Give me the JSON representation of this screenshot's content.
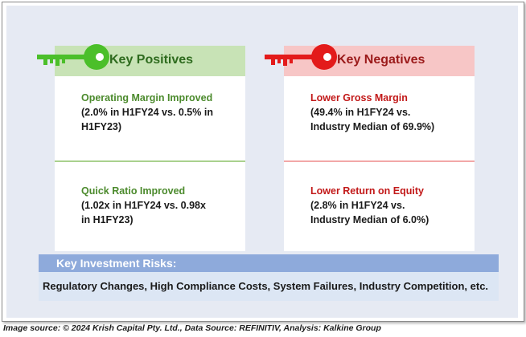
{
  "positives": {
    "header": "Key Positives",
    "color": "#4bbf2a",
    "items": [
      {
        "title": "Operating Margin Improved",
        "line1": "(2.0% in H1FY24 vs. 0.5% in",
        "line2": "H1FY23)"
      },
      {
        "title": "Quick Ratio Improved",
        "line1": "(1.02x in H1FY24 vs. 0.98x",
        "line2": "in H1FY23)"
      }
    ]
  },
  "negatives": {
    "header": "Key Negatives",
    "color": "#e31b1b",
    "items": [
      {
        "title": "Lower Gross Margin",
        "line1": "(49.4% in H1FY24 vs.",
        "line2": "Industry Median of 69.9%)"
      },
      {
        "title": "Lower Return on Equity",
        "line1": "(2.8% in H1FY24 vs.",
        "line2": "Industry Median of 6.0%)"
      }
    ]
  },
  "risks": {
    "header": "Key Investment Risks:",
    "text": "Regulatory Changes, High Compliance Costs, System Failures, Industry Competition, etc."
  },
  "caption": "Image source: © 2024 Krish Capital Pty. Ltd., Data Source: REFINITIV, Analysis: Kalkine Group",
  "icons": {
    "positives": "green-key-icon",
    "negatives": "red-key-icon"
  }
}
